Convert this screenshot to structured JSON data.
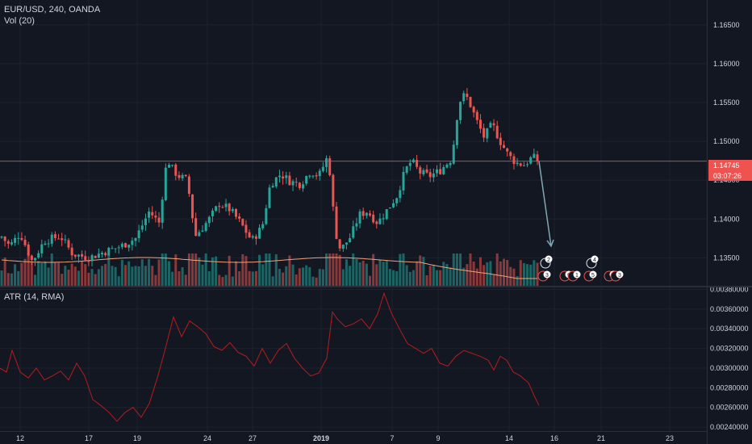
{
  "legend": {
    "symbol": "EUR/USD, 240, OANDA",
    "volume": "Vol (20)",
    "atr": "ATR (14, RMA)"
  },
  "price_tags": {
    "last": "1.14745",
    "countdown": "03:07:26"
  },
  "colors": {
    "background": "#131722",
    "up": "#26a69a",
    "down": "#ef5350",
    "atr": "#b71c1c",
    "arrow": "#7fa8b5",
    "vol_ma": "#f1a27a"
  },
  "events": {
    "upper_badges": [
      "2",
      "4"
    ],
    "lower_badges": [
      "3",
      "6",
      "1",
      "5",
      "2",
      "3"
    ]
  },
  "chart_data": [
    {
      "type": "candlestick",
      "title": "EUR/USD, 240, OANDA",
      "x_ticks": [
        "12",
        "17",
        "19",
        "24",
        "27",
        "2019",
        "7",
        "9",
        "14",
        "16",
        "21",
        "23"
      ],
      "y_ticks": [
        "1.16500",
        "1.16000",
        "1.15500",
        "1.15000",
        "1.14500",
        "1.14000",
        "1.13500"
      ],
      "ylim": [
        1.1314,
        1.1682
      ],
      "last_price": 1.14745,
      "horizontal_line": 1.14745,
      "close_path": [
        [
          0,
          1.138
        ],
        [
          12,
          1.1365
        ],
        [
          25,
          1.1382
        ],
        [
          40,
          1.1345
        ],
        [
          55,
          1.1372
        ],
        [
          75,
          1.1378
        ],
        [
          90,
          1.1355
        ],
        [
          110,
          1.135
        ],
        [
          130,
          1.1358
        ],
        [
          150,
          1.1365
        ],
        [
          168,
          1.1375
        ],
        [
          185,
          1.141
        ],
        [
          197,
          1.1395
        ],
        [
          207,
          1.1478
        ],
        [
          215,
          1.1462
        ],
        [
          222,
          1.1455
        ],
        [
          232,
          1.145
        ],
        [
          242,
          1.1378
        ],
        [
          258,
          1.1398
        ],
        [
          272,
          1.142
        ],
        [
          285,
          1.1412
        ],
        [
          298,
          1.1395
        ],
        [
          312,
          1.1372
        ],
        [
          325,
          1.139
        ],
        [
          335,
          1.1445
        ],
        [
          348,
          1.1458
        ],
        [
          360,
          1.1448
        ],
        [
          372,
          1.1445
        ],
        [
          385,
          1.1462
        ],
        [
          395,
          1.1455
        ],
        [
          405,
          1.1478
        ],
        [
          411,
          1.145
        ],
        [
          414,
          1.139
        ],
        [
          422,
          1.136
        ],
        [
          435,
          1.1378
        ],
        [
          445,
          1.1405
        ],
        [
          455,
          1.141
        ],
        [
          468,
          1.1395
        ],
        [
          480,
          1.1412
        ],
        [
          492,
          1.143
        ],
        [
          502,
          1.1462
        ],
        [
          510,
          1.1475
        ],
        [
          520,
          1.146
        ],
        [
          532,
          1.1455
        ],
        [
          545,
          1.1462
        ],
        [
          560,
          1.1478
        ],
        [
          566,
          1.153
        ],
        [
          572,
          1.156
        ],
        [
          580,
          1.1555
        ],
        [
          590,
          1.1528
        ],
        [
          600,
          1.1505
        ],
        [
          610,
          1.1522
        ],
        [
          620,
          1.15
        ],
        [
          630,
          1.1482
        ],
        [
          640,
          1.1472
        ],
        [
          650,
          1.147
        ],
        [
          660,
          1.148
        ],
        [
          668,
          1.14745
        ]
      ],
      "annotation": "projected decline arrow from 1.14745 to 1.1365"
    },
    {
      "type": "bar",
      "title": "Vol (20)",
      "series": [
        {
          "name": "Vol (20)",
          "values": []
        }
      ]
    },
    {
      "type": "line",
      "title": "ATR (14, RMA)",
      "y_ticks": [
        "0.00380000",
        "0.00360000",
        "0.00340000",
        "0.00320000",
        "0.00300000",
        "0.00280000",
        "0.00260000",
        "0.00240000"
      ],
      "ylim": [
        0.00236,
        0.00382
      ],
      "points": [
        [
          0,
          0.003
        ],
        [
          8,
          0.00296
        ],
        [
          15,
          0.00318
        ],
        [
          25,
          0.00296
        ],
        [
          35,
          0.0029
        ],
        [
          45,
          0.003
        ],
        [
          55,
          0.00288
        ],
        [
          65,
          0.00292
        ],
        [
          75,
          0.00297
        ],
        [
          85,
          0.00288
        ],
        [
          95,
          0.00305
        ],
        [
          105,
          0.00292
        ],
        [
          115,
          0.00268
        ],
        [
          125,
          0.00262
        ],
        [
          135,
          0.00255
        ],
        [
          145,
          0.00246
        ],
        [
          155,
          0.00255
        ],
        [
          165,
          0.0026
        ],
        [
          175,
          0.0025
        ],
        [
          185,
          0.00264
        ],
        [
          195,
          0.0029
        ],
        [
          205,
          0.0032
        ],
        [
          215,
          0.00352
        ],
        [
          225,
          0.00332
        ],
        [
          235,
          0.00348
        ],
        [
          245,
          0.00342
        ],
        [
          255,
          0.00335
        ],
        [
          265,
          0.00322
        ],
        [
          275,
          0.00318
        ],
        [
          285,
          0.00326
        ],
        [
          295,
          0.00316
        ],
        [
          305,
          0.00312
        ],
        [
          315,
          0.00302
        ],
        [
          325,
          0.0032
        ],
        [
          335,
          0.00305
        ],
        [
          345,
          0.00318
        ],
        [
          355,
          0.00325
        ],
        [
          365,
          0.0031
        ],
        [
          375,
          0.003
        ],
        [
          385,
          0.00292
        ],
        [
          395,
          0.00295
        ],
        [
          405,
          0.0031
        ],
        [
          412,
          0.00357
        ],
        [
          418,
          0.0035
        ],
        [
          428,
          0.00342
        ],
        [
          438,
          0.00345
        ],
        [
          448,
          0.0035
        ],
        [
          458,
          0.0034
        ],
        [
          468,
          0.00355
        ],
        [
          476,
          0.00376
        ],
        [
          485,
          0.00356
        ],
        [
          495,
          0.0034
        ],
        [
          505,
          0.00325
        ],
        [
          515,
          0.0032
        ],
        [
          525,
          0.00315
        ],
        [
          535,
          0.0032
        ],
        [
          545,
          0.00305
        ],
        [
          555,
          0.00302
        ],
        [
          565,
          0.00312
        ],
        [
          575,
          0.00318
        ],
        [
          585,
          0.00315
        ],
        [
          595,
          0.00312
        ],
        [
          605,
          0.00308
        ],
        [
          612,
          0.00298
        ],
        [
          620,
          0.00312
        ],
        [
          628,
          0.00308
        ],
        [
          636,
          0.00296
        ],
        [
          645,
          0.00292
        ],
        [
          655,
          0.00285
        ],
        [
          662,
          0.00272
        ],
        [
          668,
          0.00262
        ]
      ]
    }
  ]
}
